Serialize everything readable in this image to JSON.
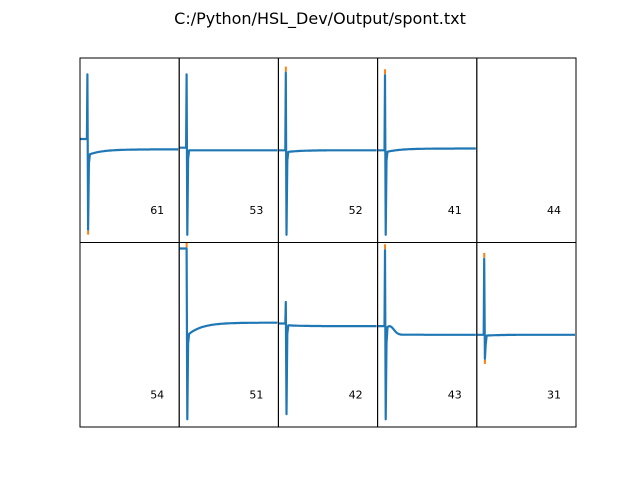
{
  "title": "C:/Python/HSL_Dev/Output/spont.txt",
  "colors": {
    "trace": "#1f77b4",
    "overlay": "#ff7f0e",
    "frame": "#000000"
  },
  "chart_data": {
    "type": "line",
    "title": "C:/Python/HSL_Dev/Output/spont.txt",
    "grid": {
      "rows": 2,
      "cols": 5
    },
    "ylim": [
      -1,
      1
    ],
    "xlim": [
      0,
      100
    ],
    "panels": [
      {
        "label": "61",
        "has_trace": true,
        "baseline": 0.13,
        "plateau": 0.01,
        "dip": -0.05,
        "peak": 0.88,
        "trough": -0.92,
        "overlay_top": false,
        "overlay_bottom": true,
        "bump": 0.0
      },
      {
        "label": "53",
        "has_trace": true,
        "baseline": 0.03,
        "plateau": 0.0,
        "dip": 0.0,
        "peak": 0.88,
        "trough": -0.98,
        "overlay_top": false,
        "overlay_bottom": false,
        "bump": 0.0
      },
      {
        "label": "52",
        "has_trace": true,
        "baseline": 0.0,
        "plateau": 0.0,
        "dip": -0.02,
        "peak": 0.9,
        "trough": -0.98,
        "overlay_top": true,
        "overlay_bottom": false,
        "bump": 0.0
      },
      {
        "label": "41",
        "has_trace": true,
        "baseline": 0.0,
        "plateau": 0.02,
        "dip": -0.02,
        "peak": 0.87,
        "trough": -0.98,
        "overlay_top": true,
        "overlay_bottom": false,
        "bump": 0.0
      },
      {
        "label": "44",
        "has_trace": false
      },
      {
        "label": "54",
        "has_trace": false
      },
      {
        "label": "51",
        "has_trace": true,
        "baseline": 1.0,
        "plateau": 0.14,
        "dip": 0.0,
        "peak": 1.0,
        "trough": -0.98,
        "overlay_top": true,
        "overlay_bottom": false,
        "bump": 0.0
      },
      {
        "label": "42",
        "has_trace": true,
        "baseline": 0.13,
        "plateau": 0.1,
        "dip": 0.11,
        "peak": 0.38,
        "trough": -0.92,
        "overlay_top": false,
        "overlay_bottom": false,
        "bump": 0.0
      },
      {
        "label": "43",
        "has_trace": true,
        "baseline": 0.1,
        "plateau": 0.0,
        "dip": 0.0,
        "peak": 0.98,
        "trough": -0.98,
        "overlay_top": true,
        "overlay_bottom": false,
        "bump": 0.1
      },
      {
        "label": "31",
        "has_trace": true,
        "baseline": 0.0,
        "plateau": 0.0,
        "dip": -0.01,
        "peak": 0.88,
        "trough": -0.28,
        "overlay_top": true,
        "overlay_bottom": true,
        "bump": 0.0
      }
    ]
  }
}
